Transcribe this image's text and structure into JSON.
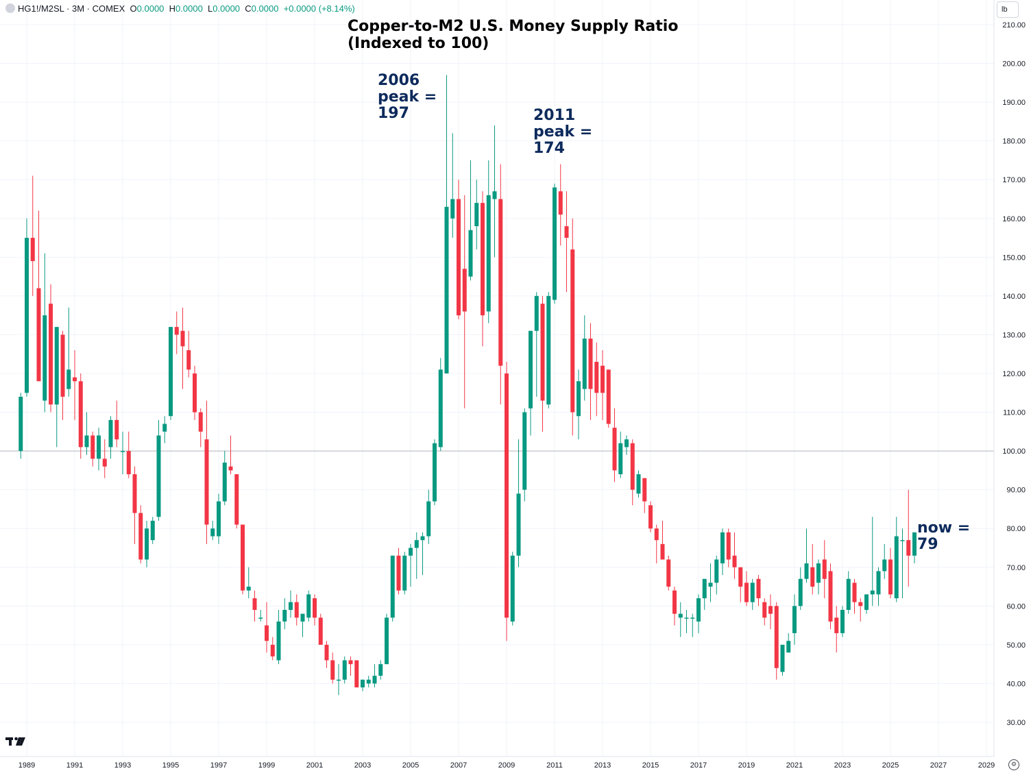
{
  "legend": {
    "symbol": "HG1!/M2SL · 3M · COMEX",
    "o_label": "O",
    "o_value": "0.0000",
    "h_label": "H",
    "h_value": "0.0000",
    "l_label": "L",
    "l_value": "0.0000",
    "c_label": "C",
    "c_value": "0.0000",
    "change": "+0.0000 (+8.14%)"
  },
  "unit": "lb",
  "title_line1": "Copper-to-M2 U.S. Money Supply Ratio",
  "title_line2": "(Indexed to 100)",
  "annotations": {
    "peak2006": [
      "2006",
      "peak =",
      "197"
    ],
    "peak2011": [
      "2011",
      "peak =",
      "174"
    ],
    "now": [
      "now =",
      "79"
    ]
  },
  "colors": {
    "up": "#089981",
    "down": "#f23645",
    "grid": "#f0f3fa",
    "baseline": "#b2b5be",
    "text": "#131722",
    "annotation": "#0d2a5c"
  },
  "icons": {
    "logo": "tradingview-logo-icon",
    "settings": "settings-gear-icon"
  },
  "chart_data": {
    "type": "candlestick",
    "title": "Copper-to-M2 U.S. Money Supply Ratio (Indexed to 100)",
    "interval": "3M",
    "baseline": 100,
    "ylim": [
      26,
      212
    ],
    "y_ticks": [
      "30.00",
      "40.00",
      "50.00",
      "60.00",
      "70.00",
      "80.00",
      "90.00",
      "100.00",
      "110.00",
      "120.00",
      "130.00",
      "140.00",
      "150.00",
      "160.00",
      "170.00",
      "180.00",
      "190.00",
      "200.00",
      "210.00"
    ],
    "x_ticks": [
      "1989",
      "1991",
      "1993",
      "1995",
      "1997",
      "1999",
      "2001",
      "2003",
      "2005",
      "2007",
      "2009",
      "2011",
      "2013",
      "2015",
      "2017",
      "2019",
      "2021",
      "2023",
      "2025",
      "2027",
      "2029"
    ],
    "x_range": [
      1988.5,
      2029.4
    ],
    "candles": [
      {
        "t": 1988.75,
        "o": 100,
        "h": 115,
        "l": 98,
        "c": 114
      },
      {
        "t": 1989.0,
        "o": 115,
        "h": 160,
        "l": 114,
        "c": 155
      },
      {
        "t": 1989.25,
        "o": 155,
        "h": 171,
        "l": 140,
        "c": 149
      },
      {
        "t": 1989.5,
        "o": 142,
        "h": 162,
        "l": 118,
        "c": 118
      },
      {
        "t": 1989.75,
        "o": 113,
        "h": 151,
        "l": 110,
        "c": 135
      },
      {
        "t": 1990.0,
        "o": 138,
        "h": 143,
        "l": 110,
        "c": 112
      },
      {
        "t": 1990.25,
        "o": 112,
        "h": 132,
        "l": 101,
        "c": 132
      },
      {
        "t": 1990.5,
        "o": 130,
        "h": 131,
        "l": 108,
        "c": 114
      },
      {
        "t": 1990.75,
        "o": 116,
        "h": 137,
        "l": 114,
        "c": 121
      },
      {
        "t": 1991.0,
        "o": 119,
        "h": 126,
        "l": 108,
        "c": 118
      },
      {
        "t": 1991.25,
        "o": 118,
        "h": 120,
        "l": 98,
        "c": 101
      },
      {
        "t": 1991.5,
        "o": 101,
        "h": 110,
        "l": 99,
        "c": 104
      },
      {
        "t": 1991.75,
        "o": 104,
        "h": 105,
        "l": 96,
        "c": 98
      },
      {
        "t": 1992.0,
        "o": 98,
        "h": 106,
        "l": 95,
        "c": 104
      },
      {
        "t": 1992.25,
        "o": 98,
        "h": 103,
        "l": 93,
        "c": 96
      },
      {
        "t": 1992.5,
        "o": 101,
        "h": 109,
        "l": 98,
        "c": 108
      },
      {
        "t": 1992.75,
        "o": 108,
        "h": 113,
        "l": 101,
        "c": 103
      },
      {
        "t": 1993.0,
        "o": 100,
        "h": 105,
        "l": 94,
        "c": 100
      },
      {
        "t": 1993.25,
        "o": 100,
        "h": 105,
        "l": 93,
        "c": 94
      },
      {
        "t": 1993.5,
        "o": 94,
        "h": 96,
        "l": 76,
        "c": 84
      },
      {
        "t": 1993.75,
        "o": 84,
        "h": 86,
        "l": 71,
        "c": 72
      },
      {
        "t": 1994.0,
        "o": 72,
        "h": 82,
        "l": 70,
        "c": 80
      },
      {
        "t": 1994.25,
        "o": 77,
        "h": 83,
        "l": 76,
        "c": 82
      },
      {
        "t": 1994.5,
        "o": 83,
        "h": 108,
        "l": 82,
        "c": 104
      },
      {
        "t": 1994.75,
        "o": 105,
        "h": 109,
        "l": 102,
        "c": 107
      },
      {
        "t": 1995.0,
        "o": 109,
        "h": 132,
        "l": 108,
        "c": 132
      },
      {
        "t": 1995.25,
        "o": 132,
        "h": 136,
        "l": 125,
        "c": 130
      },
      {
        "t": 1995.5,
        "o": 131,
        "h": 137,
        "l": 116,
        "c": 127
      },
      {
        "t": 1995.75,
        "o": 126,
        "h": 131,
        "l": 119,
        "c": 121
      },
      {
        "t": 1996.0,
        "o": 120,
        "h": 122,
        "l": 108,
        "c": 110
      },
      {
        "t": 1996.25,
        "o": 110,
        "h": 111,
        "l": 101,
        "c": 105
      },
      {
        "t": 1996.5,
        "o": 103,
        "h": 113,
        "l": 76,
        "c": 81
      },
      {
        "t": 1996.75,
        "o": 78,
        "h": 82,
        "l": 77,
        "c": 80
      },
      {
        "t": 1997.0,
        "o": 78,
        "h": 89,
        "l": 76,
        "c": 87
      },
      {
        "t": 1997.25,
        "o": 87,
        "h": 100,
        "l": 86,
        "c": 97
      },
      {
        "t": 1997.5,
        "o": 96,
        "h": 104,
        "l": 94,
        "c": 95
      },
      {
        "t": 1997.75,
        "o": 94,
        "h": 94,
        "l": 80,
        "c": 81
      },
      {
        "t": 1998.0,
        "o": 81,
        "h": 81,
        "l": 63,
        "c": 64
      },
      {
        "t": 1998.25,
        "o": 64,
        "h": 70,
        "l": 62,
        "c": 65
      },
      {
        "t": 1998.5,
        "o": 62,
        "h": 64,
        "l": 56,
        "c": 59
      },
      {
        "t": 1998.75,
        "o": 57,
        "h": 59,
        "l": 56,
        "c": 57
      },
      {
        "t": 1999.0,
        "o": 55,
        "h": 61,
        "l": 48,
        "c": 51
      },
      {
        "t": 1999.25,
        "o": 50,
        "h": 52,
        "l": 46,
        "c": 47
      },
      {
        "t": 1999.5,
        "o": 46,
        "h": 59,
        "l": 45,
        "c": 56
      },
      {
        "t": 1999.75,
        "o": 56,
        "h": 62,
        "l": 54,
        "c": 59
      },
      {
        "t": 2000.0,
        "o": 59,
        "h": 64,
        "l": 57,
        "c": 61
      },
      {
        "t": 2000.25,
        "o": 61,
        "h": 63,
        "l": 55,
        "c": 57
      },
      {
        "t": 2000.5,
        "o": 56,
        "h": 58,
        "l": 52,
        "c": 58
      },
      {
        "t": 2000.75,
        "o": 57,
        "h": 64,
        "l": 56,
        "c": 63
      },
      {
        "t": 2001.0,
        "o": 62,
        "h": 63,
        "l": 55,
        "c": 57
      },
      {
        "t": 2001.25,
        "o": 57,
        "h": 58,
        "l": 50,
        "c": 50
      },
      {
        "t": 2001.5,
        "o": 50,
        "h": 51,
        "l": 44,
        "c": 46
      },
      {
        "t": 2001.75,
        "o": 46,
        "h": 48,
        "l": 40,
        "c": 41
      },
      {
        "t": 2002.0,
        "o": 41,
        "h": 45,
        "l": 37,
        "c": 41
      },
      {
        "t": 2002.25,
        "o": 41,
        "h": 47,
        "l": 40,
        "c": 46
      },
      {
        "t": 2002.5,
        "o": 46,
        "h": 47,
        "l": 42,
        "c": 45
      },
      {
        "t": 2002.75,
        "o": 46,
        "h": 46,
        "l": 39,
        "c": 39
      },
      {
        "t": 2003.0,
        "o": 39,
        "h": 41,
        "l": 38,
        "c": 41
      },
      {
        "t": 2003.25,
        "o": 40,
        "h": 42,
        "l": 39,
        "c": 41
      },
      {
        "t": 2003.5,
        "o": 40,
        "h": 45,
        "l": 39,
        "c": 42
      },
      {
        "t": 2003.75,
        "o": 42,
        "h": 46,
        "l": 41,
        "c": 45
      },
      {
        "t": 2004.0,
        "o": 45,
        "h": 58,
        "l": 45,
        "c": 57
      },
      {
        "t": 2004.25,
        "o": 57,
        "h": 73,
        "l": 56,
        "c": 73
      },
      {
        "t": 2004.5,
        "o": 73,
        "h": 75,
        "l": 63,
        "c": 64
      },
      {
        "t": 2004.75,
        "o": 64,
        "h": 74,
        "l": 63,
        "c": 73
      },
      {
        "t": 2005.0,
        "o": 73,
        "h": 76,
        "l": 65,
        "c": 75
      },
      {
        "t": 2005.25,
        "o": 75,
        "h": 79,
        "l": 67,
        "c": 77
      },
      {
        "t": 2005.5,
        "o": 77,
        "h": 79,
        "l": 68,
        "c": 78
      },
      {
        "t": 2005.75,
        "o": 78,
        "h": 90,
        "l": 76,
        "c": 87
      },
      {
        "t": 2006.0,
        "o": 87,
        "h": 103,
        "l": 86,
        "c": 102
      },
      {
        "t": 2006.25,
        "o": 101,
        "h": 124,
        "l": 100,
        "c": 121
      },
      {
        "t": 2006.5,
        "o": 120,
        "h": 197,
        "l": 120,
        "c": 163
      },
      {
        "t": 2006.75,
        "o": 160,
        "h": 182,
        "l": 155,
        "c": 165
      },
      {
        "t": 2007.0,
        "o": 165,
        "h": 170,
        "l": 134,
        "c": 135
      },
      {
        "t": 2007.25,
        "o": 147,
        "h": 166,
        "l": 111,
        "c": 136
      },
      {
        "t": 2007.5,
        "o": 145,
        "h": 175,
        "l": 144,
        "c": 157
      },
      {
        "t": 2007.75,
        "o": 158,
        "h": 170,
        "l": 152,
        "c": 164
      },
      {
        "t": 2008.0,
        "o": 164,
        "h": 167,
        "l": 127,
        "c": 135
      },
      {
        "t": 2008.25,
        "o": 136,
        "h": 175,
        "l": 133,
        "c": 166
      },
      {
        "t": 2008.5,
        "o": 165,
        "h": 184,
        "l": 150,
        "c": 167
      },
      {
        "t": 2008.75,
        "o": 165,
        "h": 174,
        "l": 112,
        "c": 122
      },
      {
        "t": 2009.0,
        "o": 120,
        "h": 123,
        "l": 51,
        "c": 57
      },
      {
        "t": 2009.25,
        "o": 56,
        "h": 74,
        "l": 55,
        "c": 73
      },
      {
        "t": 2009.5,
        "o": 73,
        "h": 103,
        "l": 70,
        "c": 89
      },
      {
        "t": 2009.75,
        "o": 90,
        "h": 111,
        "l": 87,
        "c": 110
      },
      {
        "t": 2010.0,
        "o": 111,
        "h": 131,
        "l": 104,
        "c": 131
      },
      {
        "t": 2010.25,
        "o": 131,
        "h": 141,
        "l": 114,
        "c": 140
      },
      {
        "t": 2010.5,
        "o": 138,
        "h": 140,
        "l": 105,
        "c": 113
      },
      {
        "t": 2010.75,
        "o": 112,
        "h": 141,
        "l": 111,
        "c": 140
      },
      {
        "t": 2011.0,
        "o": 139,
        "h": 169,
        "l": 138,
        "c": 168
      },
      {
        "t": 2011.25,
        "o": 167,
        "h": 174,
        "l": 153,
        "c": 161
      },
      {
        "t": 2011.5,
        "o": 158,
        "h": 167,
        "l": 141,
        "c": 155
      },
      {
        "t": 2011.75,
        "o": 152,
        "h": 160,
        "l": 104,
        "c": 110
      },
      {
        "t": 2012.0,
        "o": 109,
        "h": 121,
        "l": 103,
        "c": 118
      },
      {
        "t": 2012.25,
        "o": 116,
        "h": 135,
        "l": 113,
        "c": 129
      },
      {
        "t": 2012.5,
        "o": 129,
        "h": 133,
        "l": 108,
        "c": 116
      },
      {
        "t": 2012.75,
        "o": 123,
        "h": 128,
        "l": 109,
        "c": 115
      },
      {
        "t": 2013.0,
        "o": 122,
        "h": 126,
        "l": 108,
        "c": 115
      },
      {
        "t": 2013.25,
        "o": 121,
        "h": 121,
        "l": 106,
        "c": 107
      },
      {
        "t": 2013.5,
        "o": 106,
        "h": 111,
        "l": 92,
        "c": 95
      },
      {
        "t": 2013.75,
        "o": 94,
        "h": 105,
        "l": 93,
        "c": 102
      },
      {
        "t": 2014.0,
        "o": 101,
        "h": 104,
        "l": 99,
        "c": 103
      },
      {
        "t": 2014.25,
        "o": 102,
        "h": 103,
        "l": 86,
        "c": 90
      },
      {
        "t": 2014.5,
        "o": 89,
        "h": 95,
        "l": 88,
        "c": 94
      },
      {
        "t": 2014.75,
        "o": 93,
        "h": 93,
        "l": 84,
        "c": 87
      },
      {
        "t": 2015.0,
        "o": 86,
        "h": 87,
        "l": 79,
        "c": 80
      },
      {
        "t": 2015.25,
        "o": 80,
        "h": 81,
        "l": 71,
        "c": 77
      },
      {
        "t": 2015.5,
        "o": 76,
        "h": 82,
        "l": 72,
        "c": 72
      },
      {
        "t": 2015.75,
        "o": 72,
        "h": 73,
        "l": 64,
        "c": 65
      },
      {
        "t": 2016.0,
        "o": 64,
        "h": 65,
        "l": 55,
        "c": 58
      },
      {
        "t": 2016.25,
        "o": 57,
        "h": 61,
        "l": 52,
        "c": 58
      },
      {
        "t": 2016.5,
        "o": 57,
        "h": 59,
        "l": 53,
        "c": 57
      },
      {
        "t": 2016.75,
        "o": 57,
        "h": 58,
        "l": 52,
        "c": 57
      },
      {
        "t": 2017.0,
        "o": 56,
        "h": 63,
        "l": 53,
        "c": 62
      },
      {
        "t": 2017.25,
        "o": 62,
        "h": 66,
        "l": 59,
        "c": 67
      },
      {
        "t": 2017.5,
        "o": 65,
        "h": 71,
        "l": 61,
        "c": 66
      },
      {
        "t": 2017.75,
        "o": 66,
        "h": 73,
        "l": 63,
        "c": 72
      },
      {
        "t": 2018.0,
        "o": 71,
        "h": 80,
        "l": 68,
        "c": 79
      },
      {
        "t": 2018.25,
        "o": 79,
        "h": 80,
        "l": 70,
        "c": 72
      },
      {
        "t": 2018.5,
        "o": 73,
        "h": 79,
        "l": 67,
        "c": 70
      },
      {
        "t": 2018.75,
        "o": 70,
        "h": 70,
        "l": 61,
        "c": 65
      },
      {
        "t": 2019.0,
        "o": 66,
        "h": 69,
        "l": 60,
        "c": 61
      },
      {
        "t": 2019.25,
        "o": 61,
        "h": 67,
        "l": 59,
        "c": 66
      },
      {
        "t": 2019.5,
        "o": 67,
        "h": 68,
        "l": 60,
        "c": 62
      },
      {
        "t": 2019.75,
        "o": 61,
        "h": 62,
        "l": 55,
        "c": 57
      },
      {
        "t": 2020.0,
        "o": 60,
        "h": 63,
        "l": 54,
        "c": 58
      },
      {
        "t": 2020.25,
        "o": 60,
        "h": 61,
        "l": 41,
        "c": 44
      },
      {
        "t": 2020.5,
        "o": 43,
        "h": 50,
        "l": 42,
        "c": 50
      },
      {
        "t": 2020.75,
        "o": 48,
        "h": 53,
        "l": 48,
        "c": 51
      },
      {
        "t": 2021.0,
        "o": 53,
        "h": 63,
        "l": 50,
        "c": 60
      },
      {
        "t": 2021.25,
        "o": 60,
        "h": 70,
        "l": 59,
        "c": 67
      },
      {
        "t": 2021.5,
        "o": 67,
        "h": 80,
        "l": 66,
        "c": 71
      },
      {
        "t": 2021.75,
        "o": 70,
        "h": 76,
        "l": 63,
        "c": 65
      },
      {
        "t": 2022.0,
        "o": 66,
        "h": 72,
        "l": 63,
        "c": 71
      },
      {
        "t": 2022.25,
        "o": 72,
        "h": 77,
        "l": 62,
        "c": 67
      },
      {
        "t": 2022.5,
        "o": 69,
        "h": 71,
        "l": 54,
        "c": 56
      },
      {
        "t": 2022.75,
        "o": 57,
        "h": 60,
        "l": 48,
        "c": 53
      },
      {
        "t": 2023.0,
        "o": 53,
        "h": 60,
        "l": 52,
        "c": 59
      },
      {
        "t": 2023.25,
        "o": 59,
        "h": 69,
        "l": 58,
        "c": 67
      },
      {
        "t": 2023.5,
        "o": 66,
        "h": 67,
        "l": 58,
        "c": 61
      },
      {
        "t": 2023.75,
        "o": 61,
        "h": 62,
        "l": 56,
        "c": 60
      },
      {
        "t": 2024.0,
        "o": 59,
        "h": 63,
        "l": 58,
        "c": 63
      },
      {
        "t": 2024.25,
        "o": 63,
        "h": 83,
        "l": 60,
        "c": 64
      },
      {
        "t": 2024.5,
        "o": 63,
        "h": 70,
        "l": 60,
        "c": 69
      },
      {
        "t": 2024.75,
        "o": 69,
        "h": 76,
        "l": 67,
        "c": 72
      },
      {
        "t": 2025.0,
        "o": 72,
        "h": 75,
        "l": 62,
        "c": 63
      },
      {
        "t": 2025.25,
        "o": 62,
        "h": 83,
        "l": 61,
        "c": 78
      },
      {
        "t": 2025.5,
        "o": 77,
        "h": 80,
        "l": 62,
        "c": 77
      },
      {
        "t": 2025.75,
        "o": 77,
        "h": 90,
        "l": 65,
        "c": 73
      },
      {
        "t": 2026.0,
        "o": 73,
        "h": 79,
        "l": 71,
        "c": 79
      }
    ]
  }
}
